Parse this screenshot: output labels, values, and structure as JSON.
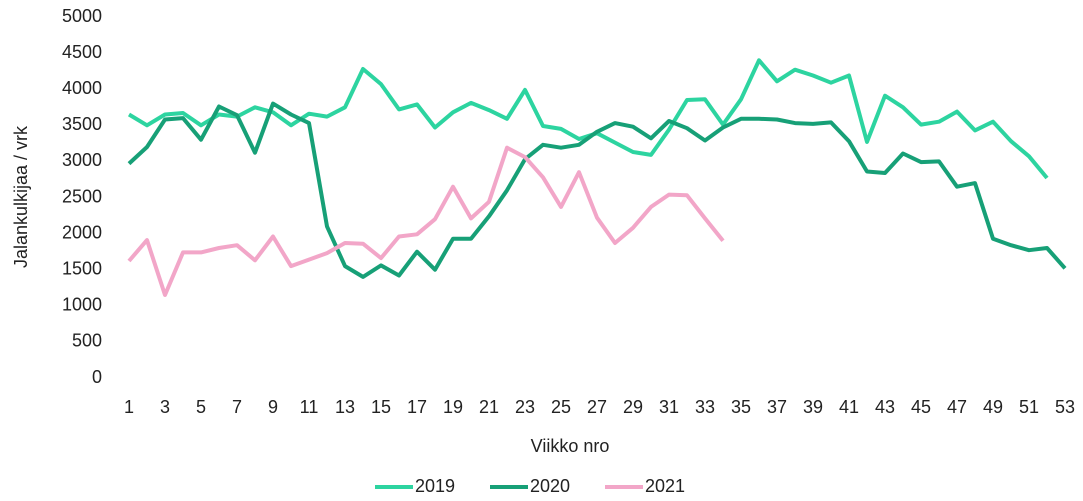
{
  "chart_data": {
    "type": "line",
    "y_label": "Jalankulkijaa / vrk",
    "x_label": "Viikko nro",
    "x": [
      1,
      2,
      3,
      4,
      5,
      6,
      7,
      8,
      9,
      10,
      11,
      12,
      13,
      14,
      15,
      16,
      17,
      18,
      19,
      20,
      21,
      22,
      23,
      24,
      25,
      26,
      27,
      28,
      29,
      30,
      31,
      32,
      33,
      34,
      35,
      36,
      37,
      38,
      39,
      40,
      41,
      42,
      43,
      44,
      45,
      46,
      47,
      48,
      49,
      50,
      51,
      52,
      53
    ],
    "xlim": [
      1,
      53
    ],
    "xticks": [
      1,
      3,
      5,
      7,
      9,
      11,
      13,
      15,
      17,
      19,
      21,
      23,
      25,
      27,
      29,
      31,
      33,
      35,
      37,
      39,
      41,
      43,
      45,
      47,
      49,
      51,
      53
    ],
    "ylim": [
      0,
      5000
    ],
    "yticks": [
      0,
      500,
      1000,
      1500,
      2000,
      2500,
      3000,
      3500,
      4000,
      4500,
      5000
    ],
    "grid": false,
    "legend": "bottom",
    "series": [
      {
        "name": "2019",
        "color": "#2dd4a0",
        "values": [
          3650,
          3500,
          3650,
          3670,
          3500,
          3650,
          3620,
          3750,
          3680,
          3500,
          3660,
          3620,
          3750,
          4280,
          4070,
          3720,
          3790,
          3470,
          3680,
          3810,
          3710,
          3590,
          3990,
          3490,
          3450,
          3310,
          3390,
          3260,
          3130,
          3090,
          3440,
          3850,
          3860,
          3510,
          3860,
          4400,
          4110,
          4270,
          4190,
          4090,
          4190,
          3270,
          3910,
          3750,
          3510,
          3550,
          3690,
          3430,
          3550,
          3280,
          3070,
          2770,
          null
        ]
      },
      {
        "name": "2020",
        "color": "#17a077",
        "values": [
          2970,
          3200,
          3580,
          3600,
          3300,
          3760,
          3640,
          3120,
          3800,
          3650,
          3530,
          2100,
          1550,
          1400,
          1560,
          1420,
          1750,
          1500,
          1930,
          1930,
          2240,
          2600,
          3030,
          3230,
          3190,
          3230,
          3410,
          3530,
          3480,
          3320,
          3560,
          3460,
          3290,
          3470,
          3590,
          3590,
          3580,
          3530,
          3520,
          3540,
          3280,
          2860,
          2840,
          3110,
          2990,
          3000,
          2650,
          2700,
          1930,
          1840,
          1770,
          1800,
          1520
        ]
      },
      {
        "name": "2021",
        "color": "#f2a6c8",
        "values": [
          1620,
          1910,
          1150,
          1740,
          1740,
          1800,
          1840,
          1630,
          1960,
          1550,
          1640,
          1730,
          1870,
          1860,
          1660,
          1960,
          1990,
          2200,
          2650,
          2210,
          2440,
          3190,
          3060,
          2780,
          2370,
          2850,
          2220,
          1870,
          2080,
          2370,
          2540,
          2530,
          2210,
          1900,
          null,
          null,
          null,
          null,
          null,
          null,
          null,
          null,
          null,
          null,
          null,
          null,
          null,
          null,
          null,
          null,
          null,
          null,
          null
        ]
      }
    ]
  }
}
